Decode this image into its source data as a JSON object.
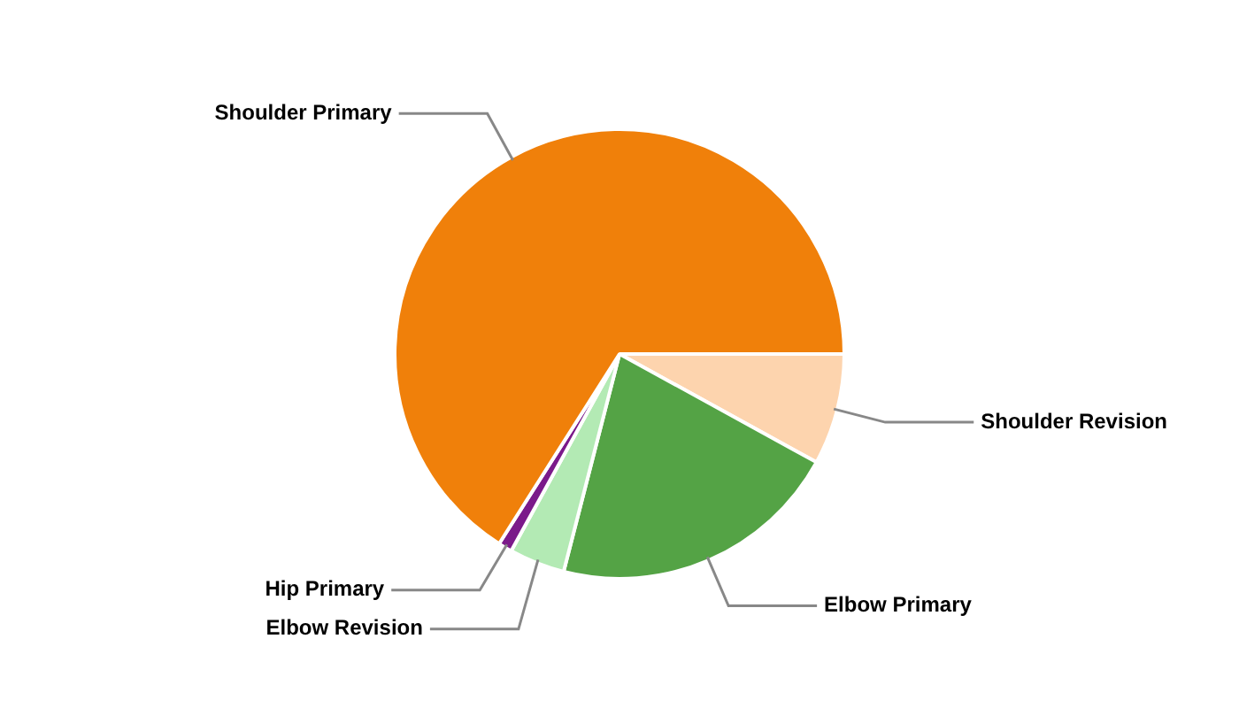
{
  "chart_data": {
    "type": "pie",
    "categories": [
      "Shoulder Revision",
      "Elbow Primary",
      "Elbow Revision",
      "Hip Primary",
      "Shoulder Primary"
    ],
    "values": [
      8,
      21,
      4,
      1,
      66
    ],
    "colors": [
      "#fdd4ae",
      "#54a345",
      "#b3eab4",
      "#7b1a8a",
      "#f0800a"
    ],
    "legend": false
  }
}
